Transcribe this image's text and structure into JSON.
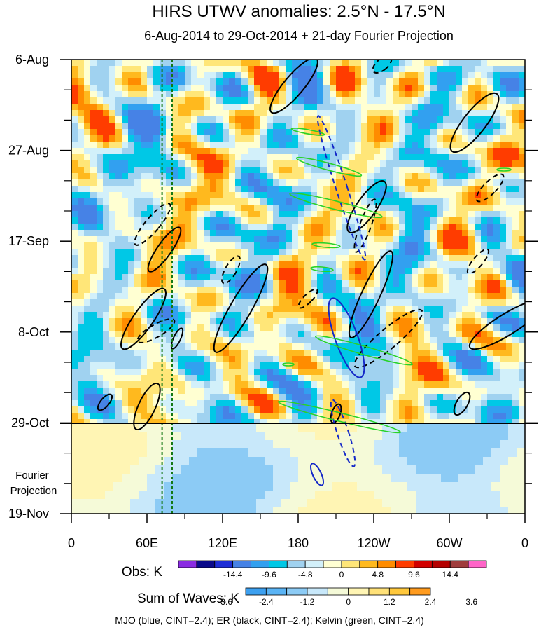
{
  "chart_data": {
    "type": "heatmap",
    "title": "HIRS UTWV anomalies: 2.5°N - 17.5°N",
    "subtitle": "6-Aug-2014 to 29-Oct-2014 + 21-day Fourier Projection",
    "x_tick_labels": [
      "0",
      "60E",
      "120E",
      "180",
      "120W",
      "60W",
      "0"
    ],
    "x_ticks_lon_east": [
      0,
      60,
      120,
      180,
      240,
      300,
      360
    ],
    "xlim": [
      0,
      360
    ],
    "y_tick_labels": [
      "6-Aug",
      "27-Aug",
      "17-Sep",
      "8-Oct",
      "29-Oct",
      "19-Nov"
    ],
    "y_ticks_day_index": [
      0,
      21,
      42,
      63,
      84,
      105
    ],
    "ylim": [
      0,
      105
    ],
    "observation_end": "29-Oct",
    "projection_label": "Fourier Projection",
    "reference_lines_lon": [
      72,
      80
    ],
    "obs_colorbar": {
      "title": "Obs: K",
      "labels": [
        "-14.4",
        "-9.6",
        "-4.8",
        "0",
        "4.8",
        "9.6",
        "14.4"
      ],
      "colors": [
        "#8a2be2",
        "#0a0a8a",
        "#1e2ed6",
        "#4682e6",
        "#32a0f0",
        "#00c8e6",
        "#a0d2f0",
        "#d2f0fa",
        "#ffffd2",
        "#ffe678",
        "#ffb91e",
        "#ff8c00",
        "#ff3c00",
        "#d20000",
        "#b40000",
        "#a03c3c",
        "#ff64c8"
      ]
    },
    "waves_colorbar": {
      "title": "Sum of Waves: K",
      "labels": [
        "-3.6",
        "-2.4",
        "-1.2",
        "0",
        "1.2",
        "2.4",
        "3.6"
      ],
      "colors": [
        "#3ca0f0",
        "#5ab4f5",
        "#8ccbf5",
        "#c8e8fa",
        "#f5fad8",
        "#fff5b4",
        "#ffe178",
        "#ffc83c",
        "#ff9b1e"
      ]
    },
    "legend_note": "MJO (blue, CINT=2.4); ER (black, CINT=2.4); Kelvin (green, CINT=2.4)",
    "wave_colors": {
      "MJO": "#1428c8",
      "ER": "#000000",
      "Kelvin": "#28d228",
      "ref_lines": "#147814"
    },
    "grid": false
  }
}
